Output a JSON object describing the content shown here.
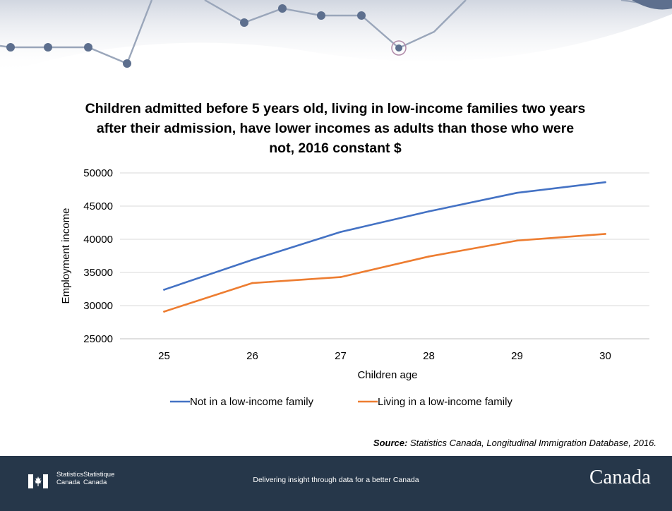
{
  "chart_data": {
    "type": "line",
    "title": "Children admitted before 5 years old, living in low-income families two years after their admission, have lower incomes as adults than those who were not, 2016 constant $",
    "xlabel": "Children age",
    "ylabel": "Employment income",
    "categories": [
      "25",
      "26",
      "27",
      "28",
      "29",
      "30"
    ],
    "ylim": [
      25000,
      50000
    ],
    "yticks": [
      "25000",
      "30000",
      "35000",
      "40000",
      "45000",
      "50000"
    ],
    "grid": true,
    "legend_position": "bottom",
    "series": [
      {
        "name": "Not in a low-income family",
        "color": "#4472c4",
        "values": [
          32400,
          36900,
          41100,
          44200,
          47000,
          48600
        ]
      },
      {
        "name": "Living in a low-income family",
        "color": "#ed7d31",
        "values": [
          29100,
          33400,
          34300,
          37400,
          39800,
          40800
        ]
      }
    ]
  },
  "source": {
    "label": "Source:",
    "text": "Statistics Canada, Longitudinal Immigration Database, 2016."
  },
  "footer": {
    "signature_en": [
      "Statistics",
      "Canada"
    ],
    "signature_fr": [
      "Statistique",
      "Canada"
    ],
    "tagline": "Delivering insight through data for a better Canada",
    "wordmark": "Canada"
  },
  "colors": {
    "footer_bg": "#26374a",
    "flag_red": "#eb2d37",
    "decor_line": "#9aa6ba",
    "decor_node": "#5d6f8e"
  },
  "decoration": {
    "icon": "network-nodes-banner"
  }
}
